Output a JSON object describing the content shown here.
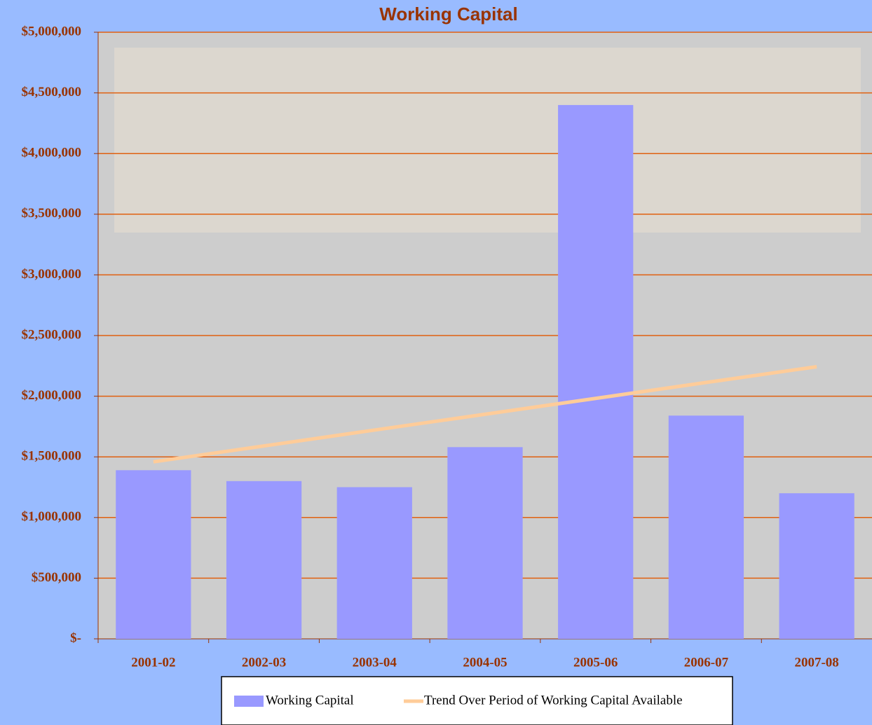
{
  "chart_data": {
    "type": "bar",
    "title": "Working Capital",
    "categories": [
      "2001-02",
      "2002-03",
      "2003-04",
      "2004-05",
      "2005-06",
      "2006-07",
      "2007-08"
    ],
    "series": [
      {
        "name": "Working Capital",
        "type": "bar",
        "color": "#9999ff",
        "values": [
          1390000,
          1300000,
          1250000,
          1580000,
          4400000,
          1840000,
          1200000
        ]
      },
      {
        "name": "Trend Over Period of Working Capital Available",
        "type": "line",
        "color": "#ffcc99",
        "values": [
          1459000,
          1590000,
          1721000,
          1851000,
          1982000,
          2113000,
          2243000
        ]
      }
    ],
    "ylim": [
      0,
      5000000
    ],
    "yticks": [
      {
        "value": 0,
        "label": "$-"
      },
      {
        "value": 500000,
        "label": "$500,000"
      },
      {
        "value": 1000000,
        "label": "$1,000,000"
      },
      {
        "value": 1500000,
        "label": "$1,500,000"
      },
      {
        "value": 2000000,
        "label": "$2,000,000"
      },
      {
        "value": 2500000,
        "label": "$2,500,000"
      },
      {
        "value": 3000000,
        "label": "$3,000,000"
      },
      {
        "value": 3500000,
        "label": "$3,500,000"
      },
      {
        "value": 4000000,
        "label": "$4,000,000"
      },
      {
        "value": 4500000,
        "label": "$4,500,000"
      },
      {
        "value": 5000000,
        "label": "$5,000,000"
      }
    ],
    "grid": true,
    "grid_color": "#e06010",
    "legend": "bottom"
  }
}
